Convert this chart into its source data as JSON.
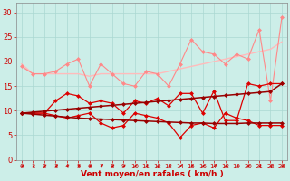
{
  "x": [
    0,
    1,
    2,
    3,
    4,
    5,
    6,
    7,
    8,
    9,
    10,
    11,
    12,
    13,
    14,
    15,
    16,
    17,
    18,
    19,
    20,
    21,
    22,
    23
  ],
  "line_trend1": [
    9.5,
    9.7,
    9.9,
    10.1,
    10.3,
    10.5,
    10.7,
    10.9,
    11.1,
    11.3,
    11.5,
    11.7,
    11.9,
    12.1,
    12.3,
    12.5,
    12.7,
    12.9,
    13.1,
    13.3,
    13.5,
    13.7,
    13.9,
    15.5
  ],
  "line_trend2": [
    9.5,
    9.3,
    9.1,
    8.9,
    8.7,
    8.5,
    8.4,
    8.3,
    8.2,
    8.1,
    8.0,
    7.9,
    7.8,
    7.7,
    7.6,
    7.5,
    7.5,
    7.4,
    7.4,
    7.4,
    7.5,
    7.5,
    7.5,
    7.5
  ],
  "line_pink_upper": [
    19.5,
    17.5,
    17.5,
    17.5,
    17.5,
    17.5,
    17.0,
    17.5,
    17.5,
    17.5,
    17.5,
    17.5,
    17.5,
    18.0,
    18.5,
    19.0,
    19.5,
    20.0,
    20.5,
    21.0,
    21.5,
    22.0,
    22.5,
    24.0
  ],
  "line_pink_zigzag": [
    19.0,
    17.5,
    17.5,
    18.0,
    19.5,
    20.5,
    15.0,
    19.5,
    17.5,
    15.5,
    15.0,
    18.0,
    17.5,
    15.0,
    19.5,
    24.5,
    22.0,
    21.5,
    19.5,
    21.5,
    20.5,
    26.5,
    12.0,
    29.0
  ],
  "line_red_upper": [
    9.5,
    9.5,
    9.5,
    12.0,
    13.5,
    13.0,
    11.5,
    12.0,
    11.5,
    9.5,
    12.0,
    11.5,
    12.5,
    11.0,
    13.5,
    13.5,
    9.5,
    14.0,
    8.0,
    8.0,
    15.5,
    15.0,
    15.5,
    15.5
  ],
  "line_red_lower": [
    9.5,
    9.5,
    9.5,
    9.0,
    8.5,
    9.0,
    9.5,
    7.5,
    6.5,
    7.0,
    9.5,
    9.0,
    8.5,
    7.5,
    4.5,
    7.0,
    7.5,
    6.5,
    9.5,
    8.5,
    8.0,
    7.0,
    7.0,
    7.0
  ],
  "xlabel": "Vent moyen/en rafales ( km/h )",
  "bg_color": "#cceee8",
  "grid_color": "#aad8d2",
  "color_light_pink": "#ffbbbb",
  "color_pink": "#ff8888",
  "color_red": "#dd0000",
  "color_dark_red": "#990000",
  "ylim": [
    0,
    32
  ],
  "xlim": [
    -0.5,
    23.5
  ],
  "yticks": [
    0,
    5,
    10,
    15,
    20,
    25,
    30
  ],
  "xticks": [
    0,
    1,
    2,
    3,
    4,
    5,
    6,
    7,
    8,
    9,
    10,
    11,
    12,
    13,
    14,
    15,
    16,
    17,
    18,
    19,
    20,
    21,
    22,
    23
  ]
}
